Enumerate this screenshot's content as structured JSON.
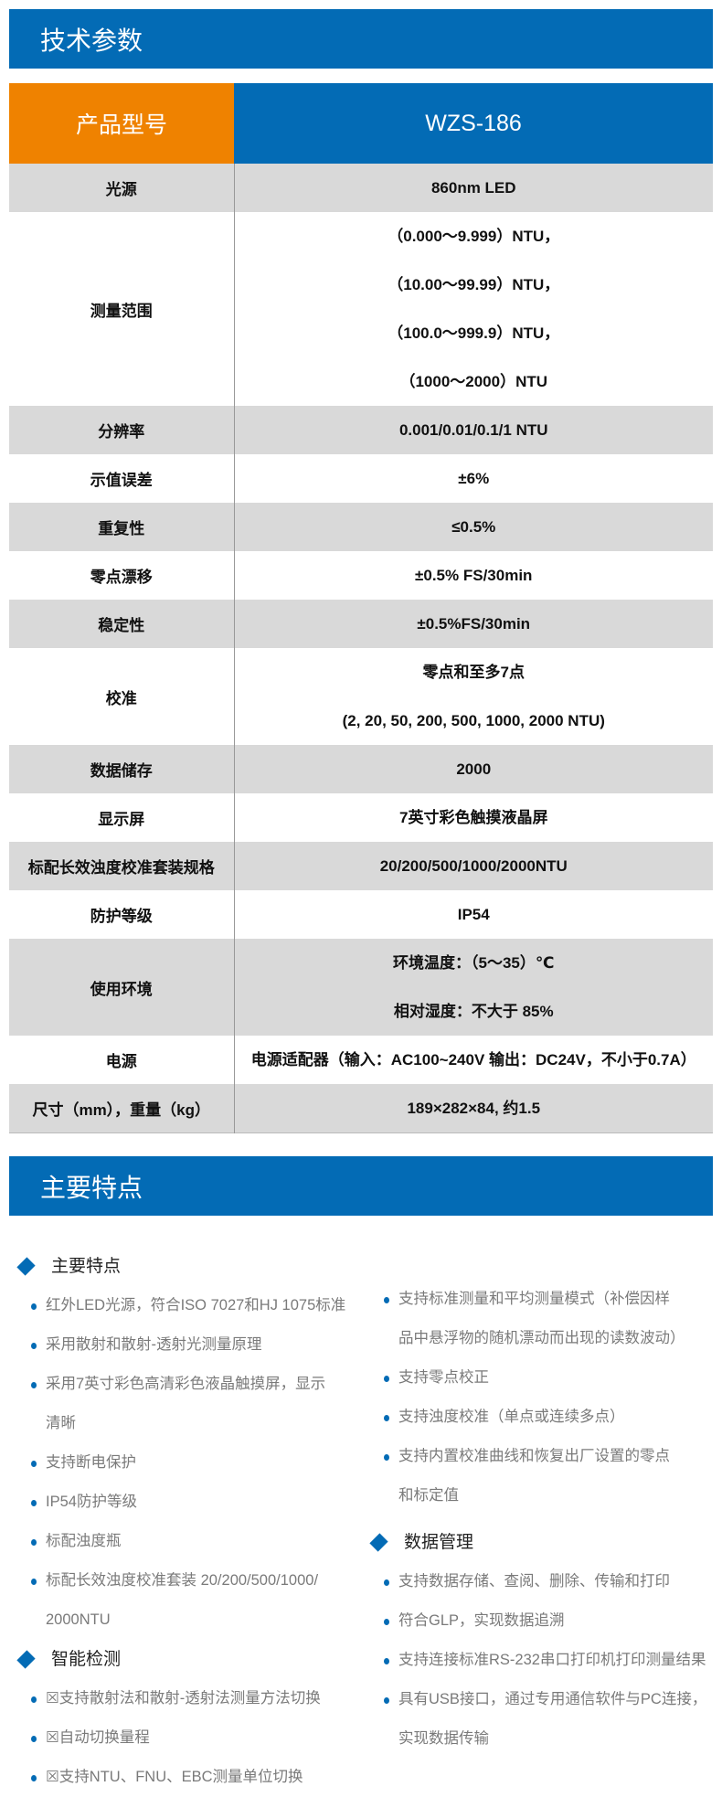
{
  "section1": {
    "title": "技术参数"
  },
  "table": {
    "header": {
      "label": "产品型号",
      "value": "WZS-186"
    },
    "rows": [
      {
        "label": "光源",
        "values": [
          "860nm LED"
        ]
      },
      {
        "label": "测量范围",
        "values": [
          "（0.000～9.999）NTU，",
          "（10.00～99.99）NTU，",
          "（100.0～999.9）NTU，",
          "（1000～2000）NTU"
        ]
      },
      {
        "label": "分辨率",
        "values": [
          "0.001/0.01/0.1/1 NTU"
        ]
      },
      {
        "label": "示值误差",
        "values": [
          "±6%"
        ]
      },
      {
        "label": "重复性",
        "values": [
          "≤0.5%"
        ]
      },
      {
        "label": "零点漂移",
        "values": [
          "±0.5% FS/30min"
        ]
      },
      {
        "label": "稳定性",
        "values": [
          "±0.5%FS/30min"
        ]
      },
      {
        "label": "校准",
        "values": [
          "零点和至多7点",
          "(2, 20, 50, 200, 500, 1000, 2000 NTU)"
        ]
      },
      {
        "label": "数据储存",
        "values": [
          "2000"
        ]
      },
      {
        "label": "显示屏",
        "values": [
          "7英寸彩色触摸液晶屏"
        ]
      },
      {
        "label": "标配长效浊度校准套装规格",
        "values": [
          "20/200/500/1000/2000NTU"
        ]
      },
      {
        "label": "防护等级",
        "values": [
          "IP54"
        ]
      },
      {
        "label": "使用环境",
        "values": [
          "环境温度：（5～35）℃",
          "相对湿度：不大于 85%"
        ]
      },
      {
        "label": "电源",
        "values": [
          "电源适配器（输入：AC100~240V 输出：DC24V，不小于0.7A）"
        ]
      },
      {
        "label": "尺寸（mm），重量（kg）",
        "values": [
          "189×282×84, 约1.5"
        ]
      }
    ]
  },
  "section2": {
    "title": "主要特点"
  },
  "features": {
    "left": [
      {
        "heading": "主要特点",
        "items": [
          [
            "红外LED光源，符合ISO 7027和HJ 1075标准"
          ],
          [
            "采用散射和散射-透射光测量原理"
          ],
          [
            "采用7英寸彩色高清彩色液晶触摸屏，显示",
            "清晰"
          ],
          [
            "支持断电保护"
          ],
          [
            "IP54防护等级"
          ],
          [
            "标配浊度瓶"
          ],
          [
            "标配长效浊度校准套装 20/200/500/1000/",
            "2000NTU"
          ]
        ]
      },
      {
        "heading": "智能检测",
        "items": [
          [
            "☒支持散射法和散射-透射法测量方法切换"
          ],
          [
            "☒自动切换量程"
          ],
          [
            "☒支持NTU、FNU、EBC测量单位切换"
          ]
        ]
      }
    ],
    "right": [
      {
        "heading": "",
        "items": [
          [
            "支持标准测量和平均测量模式（补偿因样",
            "品中悬浮物的随机漂动而出现的读数波动）"
          ],
          [
            "支持零点校正"
          ],
          [
            "支持浊度校准（单点或连续多点）"
          ],
          [
            "支持内置校准曲线和恢复出厂设置的零点",
            "和标定值"
          ]
        ]
      },
      {
        "heading": "数据管理",
        "items": [
          [
            "支持数据存储、查阅、删除、传输和打印"
          ],
          [
            "符合GLP，实现数据追溯"
          ],
          [
            "支持连接标准RS-232串口打印机打印测量结果"
          ],
          [
            "具有USB接口，通过专用通信软件与PC连接，",
            "实现数据传输"
          ]
        ]
      }
    ]
  },
  "colors": {
    "brand_blue": "#036bb5",
    "accent_orange": "#ef8200",
    "row_gray": "#d9d9d9"
  }
}
